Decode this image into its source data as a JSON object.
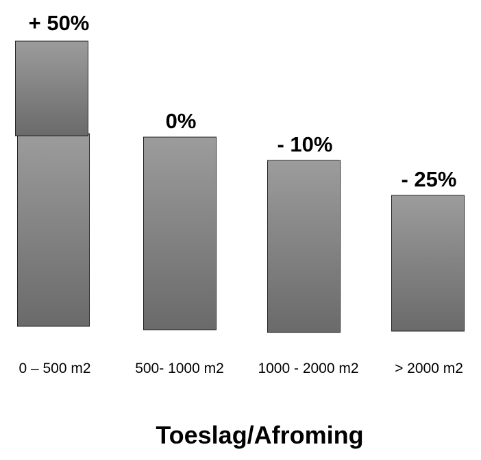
{
  "chart_data": {
    "type": "bar",
    "title": "Toeslag/Afroming",
    "xlabel": "",
    "ylabel": "",
    "categories": [
      "0 – 500 m2",
      "500- 1000 m2",
      "1000 - 2000 m2",
      "> 2000 m2"
    ],
    "values": [
      50,
      0,
      -10,
      -25
    ],
    "data_labels": [
      "+ 50%",
      "0%",
      "- 10%",
      "- 25%"
    ],
    "unit": "%",
    "grid": false,
    "legend": "none",
    "colors": {
      "bar_top": "#9c9c9c",
      "bar_bottom": "#6a6a6a",
      "bar_border": "#222222"
    }
  }
}
